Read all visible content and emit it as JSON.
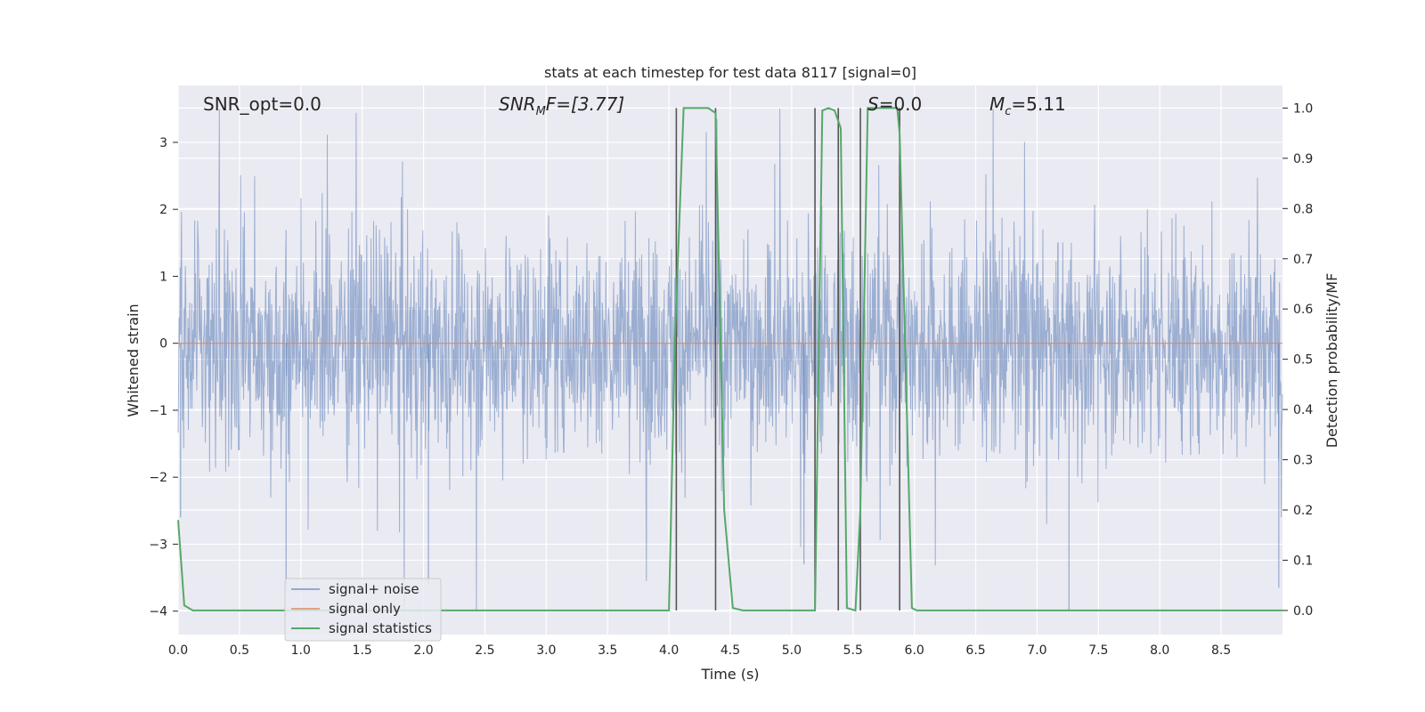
{
  "chart_data": {
    "type": "line",
    "title": "stats at each timestep for test data 8117 [signal=0]",
    "xlabel": "Time (s)",
    "ylabel_left": "Whitened strain",
    "ylabel_right": "Detection probability/MF",
    "xlim": [
      0,
      9.0
    ],
    "ylim_left": [
      -4.35,
      3.85
    ],
    "ylim_right": [
      -0.048,
      1.045
    ],
    "x_ticks": [
      "0.0",
      "0.5",
      "1.0",
      "1.5",
      "2.0",
      "2.5",
      "3.0",
      "3.5",
      "4.0",
      "4.5",
      "5.0",
      "5.5",
      "6.0",
      "6.5",
      "7.0",
      "7.5",
      "8.0",
      "8.5"
    ],
    "y_left_ticks": [
      "3",
      "2",
      "1",
      "0",
      "−1",
      "−2",
      "−3",
      "−4"
    ],
    "y_right_ticks": [
      "1.0",
      "0.9",
      "0.8",
      "0.7",
      "0.6",
      "0.5",
      "0.4",
      "0.3",
      "0.2",
      "0.1",
      "0.0"
    ],
    "grid": true,
    "legend_position": "lower-left",
    "annotations": {
      "snr_opt": "SNR_opt=0.0",
      "snr_mf_main": "SNR",
      "snr_mf_sub": "M",
      "snr_mf_rest": "F=[3.77]",
      "s_main": "S",
      "s_rest": "=0.0",
      "mc_main": "M",
      "mc_sub": "c",
      "mc_rest": "=5.11"
    },
    "series": [
      {
        "name": "signal+ noise",
        "axis": "left",
        "color": "#4c72b0",
        "kind": "noise",
        "typical_range": [
          -1.6,
          1.6
        ],
        "envelope_range": [
          -4.0,
          3.5
        ],
        "spikes": [
          [
            0.88,
            -3.6
          ],
          [
            2.04,
            -3.6
          ],
          [
            7.26,
            -4.0
          ],
          [
            8.97,
            -3.65
          ],
          [
            0.02,
            -2.6
          ],
          [
            5.1,
            -3.3
          ]
        ]
      },
      {
        "name": "signal only",
        "axis": "left",
        "color": "#dd8452",
        "x": [
          0,
          9.0
        ],
        "y": [
          0,
          0
        ]
      },
      {
        "name": "signal statistics",
        "axis": "right",
        "color": "#55a868",
        "x": [
          0.0,
          0.05,
          0.12,
          0.2,
          4.0,
          4.05,
          4.12,
          4.3,
          4.32,
          4.38,
          4.45,
          4.52,
          4.6,
          5.19,
          5.25,
          5.3,
          5.35,
          5.4,
          5.45,
          5.52,
          5.56,
          5.62,
          5.7,
          5.86,
          5.88,
          5.98,
          6.02,
          6.1,
          9.0
        ],
        "y": [
          0.18,
          0.01,
          0.0,
          0.0,
          0.0,
          0.55,
          1.0,
          1.0,
          1.0,
          0.99,
          0.2,
          0.005,
          0.0,
          0.0,
          0.995,
          1.0,
          0.995,
          0.96,
          0.005,
          0.0,
          0.2,
          1.0,
          1.0,
          1.0,
          0.95,
          0.005,
          0.0,
          0.0,
          0.0
        ]
      }
    ],
    "vertical_markers": {
      "color": "#555555",
      "x": [
        4.06,
        4.38,
        5.19,
        5.38,
        5.56,
        5.88
      ],
      "y_range": [
        0.0,
        1.0
      ]
    }
  }
}
